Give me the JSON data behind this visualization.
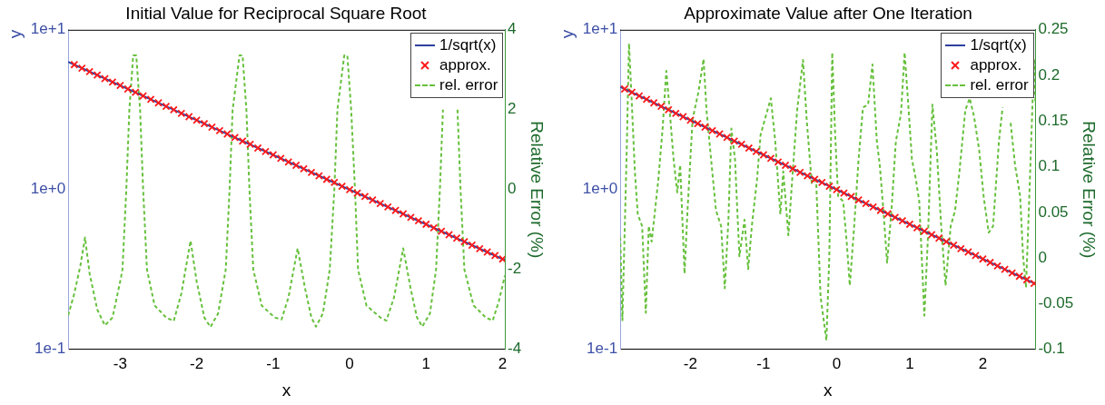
{
  "chart_data": [
    {
      "type": "line",
      "title": "Initial Value for Reciprocal Square Root",
      "xlabel": "x",
      "ylabel": "y",
      "y2label": "Relative Error (%)",
      "xlim": [
        -3.68,
        2.03
      ],
      "xticks": [
        -3,
        -2,
        -1,
        0,
        1,
        2
      ],
      "ylim": [
        0.1,
        10
      ],
      "yticks": [
        {
          "value": 0.1,
          "label": "1e-1"
        },
        {
          "value": 1,
          "label": "1e+0"
        },
        {
          "value": 10,
          "label": "1e+1"
        }
      ],
      "log": "y",
      "y2lim": [
        -4,
        4
      ],
      "y2ticks": [
        -4,
        -2,
        0,
        2,
        4
      ],
      "legend": "top right",
      "series": [
        {
          "name": "1/sqrt(x)",
          "type": "line",
          "color": "#2e3f9e",
          "marker": "none",
          "line_style": "solid",
          "x": [
            -3.68,
            2.03
          ],
          "values": [
            6.3,
            0.362
          ]
        },
        {
          "name": "approx.",
          "type": "scatter",
          "color": "#ff1a1a",
          "marker": "cross",
          "x": [
            -3.6,
            -3.5,
            -3.4,
            -3.3,
            -3.2,
            -3.1,
            -3.0,
            -2.9,
            -2.8,
            -2.7,
            -2.6,
            -2.5,
            -2.4,
            -2.3,
            -2.2,
            -2.1,
            -2.0,
            -1.9,
            -1.8,
            -1.7,
            -1.6,
            -1.5,
            -1.4,
            -1.3,
            -1.2,
            -1.1,
            -1.0,
            -0.9,
            -0.8,
            -0.7,
            -0.6,
            -0.5,
            -0.4,
            -0.3,
            -0.2,
            -0.1,
            0,
            0.1,
            0.2,
            0.3,
            0.4,
            0.5,
            0.6,
            0.7,
            0.8,
            0.9,
            1.0,
            1.1,
            1.2,
            1.3,
            1.4,
            1.5,
            1.6,
            1.7,
            1.8,
            1.9,
            2.0
          ],
          "values": [
            6.05,
            5.75,
            5.47,
            5.21,
            4.95,
            4.71,
            4.48,
            4.26,
            4.06,
            3.86,
            3.67,
            3.49,
            3.32,
            3.16,
            3.0,
            2.86,
            2.72,
            2.59,
            2.46,
            2.34,
            2.23,
            2.12,
            2.01,
            1.92,
            1.82,
            1.73,
            1.65,
            1.57,
            1.49,
            1.42,
            1.35,
            1.28,
            1.22,
            1.16,
            1.11,
            1.05,
            1.0,
            0.951,
            0.905,
            0.861,
            0.819,
            0.779,
            0.741,
            0.705,
            0.67,
            0.638,
            0.607,
            0.577,
            0.549,
            0.522,
            0.497,
            0.472,
            0.449,
            0.427,
            0.407,
            0.387,
            0.368
          ]
        },
        {
          "name": "rel. error",
          "type": "line",
          "color": "#66c03c",
          "marker": "none",
          "line_style": "dashed",
          "axis": "y2",
          "x": [
            -3.68,
            -3.6,
            -3.52,
            -3.46,
            -3.4,
            -3.3,
            -3.2,
            -3.1,
            -3.0,
            -2.97,
            -2.92,
            -2.88,
            -2.83,
            -2.79,
            -2.74,
            -2.7,
            -2.65,
            -2.55,
            -2.4,
            -2.3,
            -2.2,
            -2.08,
            -2.0,
            -1.9,
            -1.82,
            -1.72,
            -1.62,
            -1.57,
            -1.53,
            -1.44,
            -1.4,
            -1.35,
            -1.31,
            -1.26,
            -1.15,
            -0.98,
            -0.89,
            -0.8,
            -0.68,
            -0.58,
            -0.5,
            -0.44,
            -0.35,
            -0.26,
            -0.2,
            -0.16,
            -0.07,
            -0.03,
            0.02,
            0.07,
            0.11,
            0.22,
            0.4,
            0.48,
            0.58,
            0.7,
            0.8,
            0.88,
            0.95,
            1.05,
            1.13,
            1.18,
            1.22,
            1.32,
            1.36,
            1.41,
            1.45,
            1.5,
            1.62,
            1.78,
            1.87,
            1.95,
            2.03
          ],
          "values": [
            -3.15,
            -2.6,
            -1.9,
            -1.2,
            -2.1,
            -3.0,
            -3.4,
            -3.2,
            -2.3,
            -2.0,
            0,
            2.0,
            3.36,
            3.36,
            2.0,
            0,
            -2.0,
            -2.9,
            -3.2,
            -3.29,
            -2.6,
            -1.28,
            -2.3,
            -3.2,
            -3.44,
            -3.1,
            -2.0,
            0,
            2.0,
            3.36,
            3.36,
            2.0,
            0,
            -2.0,
            -2.9,
            -3.2,
            -3.25,
            -2.7,
            -1.47,
            -2.5,
            -3.2,
            -3.43,
            -3.1,
            -2.0,
            0,
            2.0,
            3.36,
            3.36,
            2.0,
            0,
            -2.0,
            -2.9,
            -3.2,
            -3.28,
            -2.7,
            -1.47,
            -2.5,
            -3.2,
            -3.43,
            -3.1,
            -2.0,
            0,
            2.0,
            null,
            null,
            2.0,
            0,
            -2.0,
            -2.9,
            -3.2,
            -3.28,
            -2.8,
            -2.15
          ]
        }
      ]
    },
    {
      "type": "line",
      "title": "Approximate Value after One Iteration",
      "xlabel": "x",
      "ylabel": "y",
      "y2label": "Relative Error (%)",
      "xlim": [
        -2.96,
        2.72
      ],
      "xticks": [
        -2,
        -1,
        0,
        1,
        2
      ],
      "ylim": [
        0.1,
        10
      ],
      "yticks": [
        {
          "value": 0.1,
          "label": "1e-1"
        },
        {
          "value": 1,
          "label": "1e+0"
        },
        {
          "value": 10,
          "label": "1e+1"
        }
      ],
      "log": "y",
      "y2lim": [
        -0.1,
        0.25
      ],
      "y2ticks": [
        -0.1,
        -0.05,
        0,
        0.05,
        0.1,
        0.15,
        0.2,
        0.25
      ],
      "legend": "top right",
      "series": [
        {
          "name": "1/sqrt(x)",
          "type": "line",
          "color": "#2e3f9e",
          "marker": "none",
          "line_style": "solid",
          "x": [
            -2.96,
            2.72
          ],
          "values": [
            4.39,
            0.257
          ]
        },
        {
          "name": "approx.",
          "type": "scatter",
          "color": "#ff1a1a",
          "marker": "cross",
          "x": [
            -2.9,
            -2.8,
            -2.7,
            -2.6,
            -2.5,
            -2.4,
            -2.3,
            -2.2,
            -2.1,
            -2.0,
            -1.9,
            -1.8,
            -1.7,
            -1.6,
            -1.5,
            -1.4,
            -1.3,
            -1.2,
            -1.1,
            -1.0,
            -0.9,
            -0.8,
            -0.7,
            -0.6,
            -0.5,
            -0.4,
            -0.3,
            -0.2,
            -0.1,
            0,
            0.1,
            0.2,
            0.3,
            0.4,
            0.5,
            0.6,
            0.7,
            0.8,
            0.9,
            1.0,
            1.1,
            1.2,
            1.3,
            1.4,
            1.5,
            1.6,
            1.7,
            1.8,
            1.9,
            2.0,
            2.1,
            2.2,
            2.3,
            2.4,
            2.5,
            2.6,
            2.7
          ],
          "values": [
            4.26,
            4.06,
            3.86,
            3.67,
            3.49,
            3.32,
            3.16,
            3.0,
            2.86,
            2.72,
            2.59,
            2.46,
            2.34,
            2.23,
            2.12,
            2.01,
            1.92,
            1.82,
            1.73,
            1.65,
            1.57,
            1.49,
            1.42,
            1.35,
            1.28,
            1.22,
            1.16,
            1.11,
            1.05,
            1.0,
            0.951,
            0.905,
            0.861,
            0.819,
            0.779,
            0.741,
            0.705,
            0.67,
            0.638,
            0.607,
            0.577,
            0.549,
            0.522,
            0.497,
            0.472,
            0.449,
            0.427,
            0.407,
            0.387,
            0.368,
            0.35,
            0.333,
            0.317,
            0.301,
            0.287,
            0.273,
            0.259
          ]
        },
        {
          "name": "rel. error",
          "type": "line",
          "color": "#66c03c",
          "marker": "none",
          "line_style": "dashed",
          "axis": "y2",
          "x": [
            -2.96,
            -2.93,
            -2.87,
            -2.84,
            -2.81,
            -2.76,
            -2.72,
            -2.66,
            -2.61,
            -2.57,
            -2.53,
            -2.44,
            -2.38,
            -2.33,
            -2.29,
            -2.23,
            -2.18,
            -2.14,
            -2.08,
            -2.04,
            -1.97,
            -1.89,
            -1.82,
            -1.78,
            -1.71,
            -1.65,
            -1.58,
            -1.53,
            -1.48,
            -1.44,
            -1.39,
            -1.33,
            -1.26,
            -1.21,
            -1.16,
            -1.09,
            -1.04,
            -0.96,
            -0.9,
            -0.84,
            -0.77,
            -0.73,
            -0.66,
            -0.6,
            -0.54,
            -0.46,
            -0.41,
            -0.34,
            -0.28,
            -0.22,
            -0.14,
            -0.1,
            -0.06,
            -0.02,
            0.02,
            0.09,
            0.14,
            0.18,
            0.24,
            0.3,
            0.36,
            0.43,
            0.49,
            0.55,
            0.59,
            0.64,
            0.69,
            0.75,
            0.81,
            0.88,
            0.93,
            0.98,
            1.03,
            1.08,
            1.13,
            1.2,
            1.25,
            1.31,
            1.37,
            1.43,
            1.49,
            1.56,
            1.62,
            1.68,
            1.76,
            1.82,
            1.88,
            1.95,
            2.01,
            2.08,
            2.14,
            2.22,
            2.27,
            2.32,
            2.38,
            2.44,
            2.51,
            2.55,
            2.59,
            2.63,
            2.7,
            2.72
          ],
          "values": [
            0.023,
            -0.068,
            0.122,
            0.235,
            0.185,
            0.095,
            0.048,
            0.035,
            -0.06,
            0.035,
            0.018,
            0.085,
            0.142,
            0.205,
            0.168,
            0.108,
            0.072,
            0.102,
            -0.017,
            0.052,
            0.152,
            0.182,
            0.218,
            0.162,
            0.102,
            0.052,
            0.035,
            -0.033,
            0.042,
            0.142,
            0.108,
            0.002,
            0.042,
            -0.012,
            0.035,
            0.085,
            0.135,
            0.158,
            0.175,
            0.128,
            0.048,
            0.095,
            0.025,
            0.095,
            0.162,
            0.217,
            0.152,
            0.082,
            0.085,
            -0.042,
            -0.09,
            0.002,
            0.225,
            0.135,
            0.068,
            0.062,
            0.015,
            -0.03,
            0.035,
            0.108,
            0.165,
            0.168,
            0.212,
            0.128,
            0.102,
            0.052,
            -0.005,
            0.052,
            0.128,
            0.158,
            0.225,
            0.168,
            0.108,
            0.088,
            0.062,
            -0.063,
            0.025,
            0.168,
            0.118,
            0.035,
            -0.03,
            0.035,
            0.052,
            0.095,
            0.162,
            0.175,
            0.155,
            0.118,
            0.068,
            0.028,
            0.035,
            0.128,
            0.165,
            null,
            0.148,
            0.102,
            0.068,
            0.002,
            -0.032,
            0.055,
            0.218,
            0.168
          ]
        }
      ]
    }
  ]
}
